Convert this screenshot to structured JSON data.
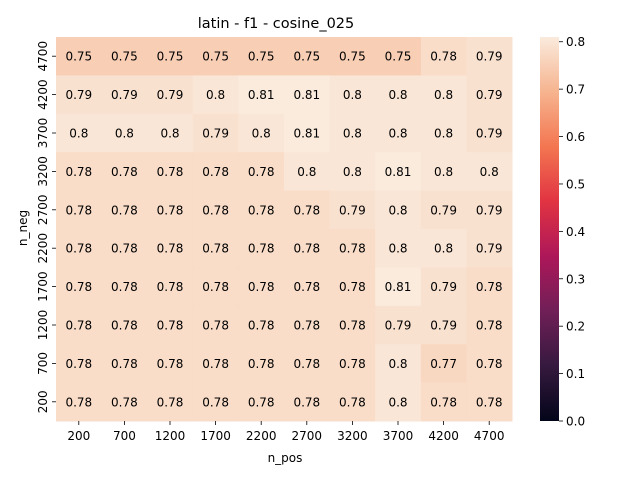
{
  "chart_data": {
    "type": "heatmap",
    "title": "latin - f1 - cosine_025",
    "xlabel": "n_pos",
    "ylabel": "n_neg",
    "x_categories": [
      "200",
      "700",
      "1200",
      "1700",
      "2200",
      "2700",
      "3200",
      "3700",
      "4200",
      "4700"
    ],
    "y_categories": [
      "4700",
      "4200",
      "3700",
      "3200",
      "2700",
      "2200",
      "1700",
      "1200",
      "700",
      "200"
    ],
    "values": [
      [
        0.75,
        0.75,
        0.75,
        0.75,
        0.75,
        0.75,
        0.75,
        0.75,
        0.78,
        0.79
      ],
      [
        0.79,
        0.79,
        0.79,
        0.8,
        0.81,
        0.81,
        0.8,
        0.8,
        0.8,
        0.79
      ],
      [
        0.8,
        0.8,
        0.8,
        0.79,
        0.8,
        0.81,
        0.8,
        0.8,
        0.8,
        0.79
      ],
      [
        0.78,
        0.78,
        0.78,
        0.78,
        0.78,
        0.8,
        0.8,
        0.81,
        0.8,
        0.8
      ],
      [
        0.78,
        0.78,
        0.78,
        0.78,
        0.78,
        0.78,
        0.79,
        0.8,
        0.79,
        0.79
      ],
      [
        0.78,
        0.78,
        0.78,
        0.78,
        0.78,
        0.78,
        0.78,
        0.8,
        0.8,
        0.79
      ],
      [
        0.78,
        0.78,
        0.78,
        0.78,
        0.78,
        0.78,
        0.78,
        0.81,
        0.79,
        0.78
      ],
      [
        0.78,
        0.78,
        0.78,
        0.78,
        0.78,
        0.78,
        0.78,
        0.79,
        0.79,
        0.78
      ],
      [
        0.78,
        0.78,
        0.78,
        0.78,
        0.78,
        0.78,
        0.78,
        0.8,
        0.77,
        0.78
      ],
      [
        0.78,
        0.78,
        0.78,
        0.78,
        0.78,
        0.78,
        0.78,
        0.8,
        0.78,
        0.78
      ]
    ],
    "value_labels": [
      [
        "0.75",
        "0.75",
        "0.75",
        "0.75",
        "0.75",
        "0.75",
        "0.75",
        "0.75",
        "0.78",
        "0.79"
      ],
      [
        "0.79",
        "0.79",
        "0.79",
        "0.8",
        "0.81",
        "0.81",
        "0.8",
        "0.8",
        "0.8",
        "0.79"
      ],
      [
        "0.8",
        "0.8",
        "0.8",
        "0.79",
        "0.8",
        "0.81",
        "0.8",
        "0.8",
        "0.8",
        "0.79"
      ],
      [
        "0.78",
        "0.78",
        "0.78",
        "0.78",
        "0.78",
        "0.8",
        "0.8",
        "0.81",
        "0.8",
        "0.8"
      ],
      [
        "0.78",
        "0.78",
        "0.78",
        "0.78",
        "0.78",
        "0.78",
        "0.79",
        "0.8",
        "0.79",
        "0.79"
      ],
      [
        "0.78",
        "0.78",
        "0.78",
        "0.78",
        "0.78",
        "0.78",
        "0.78",
        "0.8",
        "0.8",
        "0.79"
      ],
      [
        "0.78",
        "0.78",
        "0.78",
        "0.78",
        "0.78",
        "0.78",
        "0.78",
        "0.81",
        "0.79",
        "0.78"
      ],
      [
        "0.78",
        "0.78",
        "0.78",
        "0.78",
        "0.78",
        "0.78",
        "0.78",
        "0.79",
        "0.79",
        "0.78"
      ],
      [
        "0.78",
        "0.78",
        "0.78",
        "0.78",
        "0.78",
        "0.78",
        "0.78",
        "0.8",
        "0.77",
        "0.78"
      ],
      [
        "0.78",
        "0.78",
        "0.78",
        "0.78",
        "0.78",
        "0.78",
        "0.78",
        "0.8",
        "0.78",
        "0.78"
      ]
    ],
    "colorbar": {
      "range": [
        0,
        0.81
      ],
      "ticks": [
        0.0,
        0.1,
        0.2,
        0.3,
        0.4,
        0.5,
        0.6,
        0.7,
        0.8
      ],
      "tick_labels": [
        "0.0",
        "0.1",
        "0.2",
        "0.3",
        "0.4",
        "0.5",
        "0.6",
        "0.7",
        "0.8"
      ],
      "colormap": "rocket",
      "colormap_stops": [
        "#03051a",
        "#35193e",
        "#701f57",
        "#ad1759",
        "#e13342",
        "#f37651",
        "#f6b48f",
        "#faebdd"
      ]
    },
    "grid": false
  }
}
